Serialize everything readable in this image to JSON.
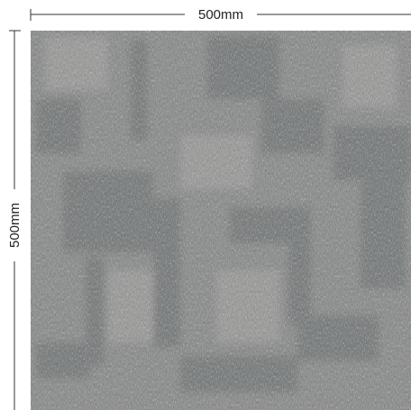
{
  "dimensions": {
    "width": "500mm",
    "height": "500mm"
  }
}
